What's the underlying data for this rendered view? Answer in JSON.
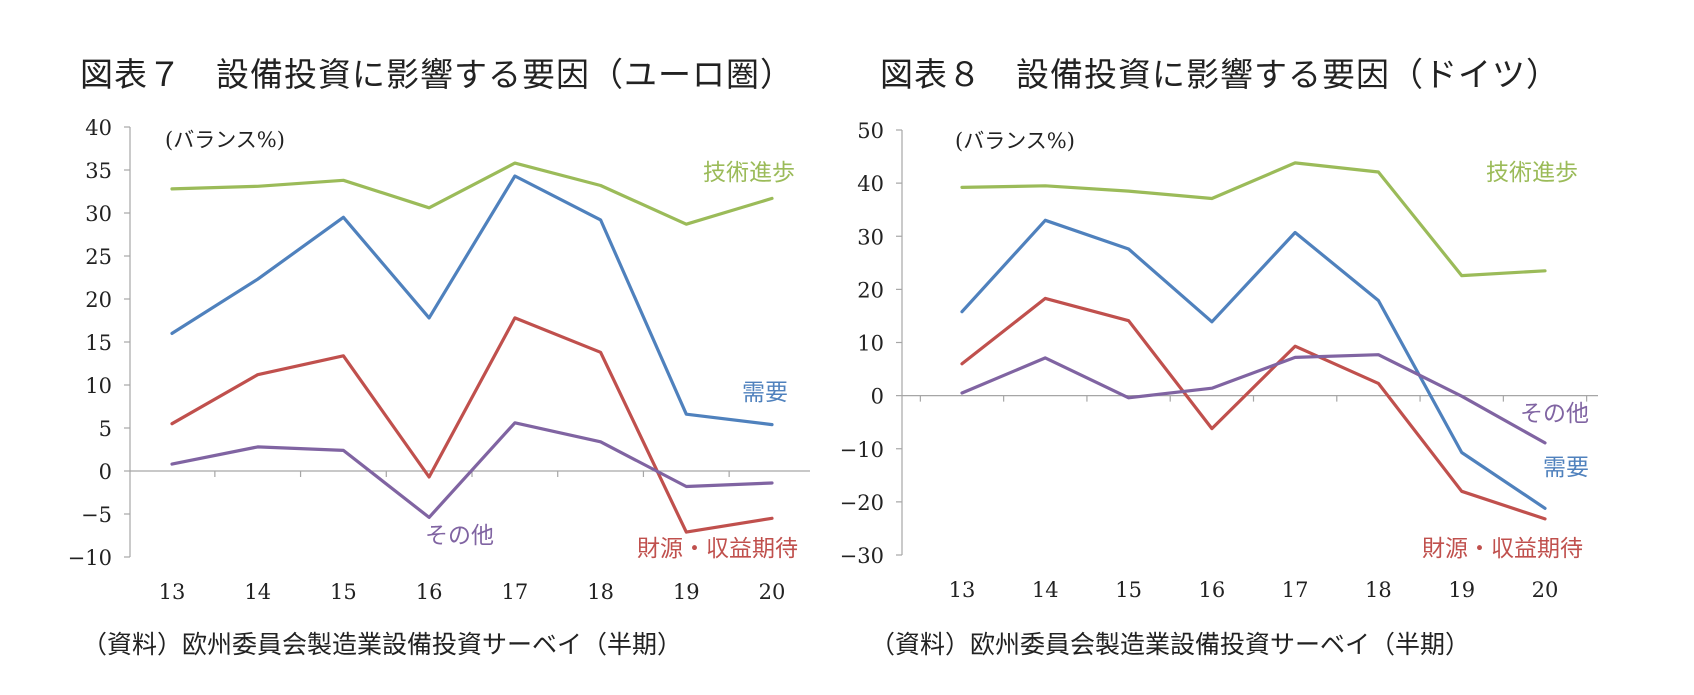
{
  "chart_data": [
    {
      "type": "line",
      "title": "図表７　設備投資に影響する要因（ユーロ圏）",
      "unit_label": "(バランス%)",
      "categories": [
        "13",
        "14",
        "15",
        "16",
        "17",
        "18",
        "19",
        "20"
      ],
      "ylim": [
        -10,
        40
      ],
      "yticks": [
        "40",
        "35",
        "30",
        "25",
        "20",
        "15",
        "10",
        "5",
        "0",
        "−5",
        "−10"
      ],
      "series": [
        {
          "name": "技術進歩",
          "color": "#9bbb59",
          "values": [
            32.8,
            33.1,
            33.8,
            30.6,
            35.8,
            33.2,
            28.7,
            31.7
          ]
        },
        {
          "name": "需要",
          "color": "#4f81bd",
          "values": [
            16.0,
            22.3,
            29.5,
            17.8,
            34.3,
            29.2,
            6.6,
            5.4
          ]
        },
        {
          "name": "財源・収益期待",
          "color": "#c0504d",
          "values": [
            5.5,
            11.2,
            13.4,
            -0.7,
            17.8,
            13.8,
            -7.1,
            -5.5
          ]
        },
        {
          "name": "その他",
          "color": "#8064a2",
          "values": [
            0.8,
            2.8,
            2.4,
            -5.4,
            5.6,
            3.4,
            -1.8,
            -1.4
          ]
        }
      ],
      "source": "（資料）欧州委員会製造業設備投資サーベイ（半期）"
    },
    {
      "type": "line",
      "title": "図表８　設備投資に影響する要因（ドイツ）",
      "unit_label": "(バランス%)",
      "categories": [
        "13",
        "14",
        "15",
        "16",
        "17",
        "18",
        "19",
        "20"
      ],
      "ylim": [
        -30,
        50
      ],
      "yticks": [
        "50",
        "40",
        "30",
        "20",
        "10",
        "0",
        "−10",
        "−20",
        "−30"
      ],
      "series": [
        {
          "name": "技術進歩",
          "color": "#9bbb59",
          "values": [
            39.2,
            39.5,
            38.5,
            37.1,
            43.8,
            42.1,
            22.6,
            23.5
          ]
        },
        {
          "name": "需要",
          "color": "#4f81bd",
          "values": [
            15.8,
            33.0,
            27.6,
            13.9,
            30.7,
            17.9,
            -10.7,
            -21.2
          ]
        },
        {
          "name": "財源・収益期待",
          "color": "#c0504d",
          "values": [
            6.0,
            18.3,
            14.1,
            -6.2,
            9.3,
            2.3,
            -18.0,
            -23.2
          ]
        },
        {
          "name": "その他",
          "color": "#8064a2",
          "values": [
            0.5,
            7.1,
            -0.4,
            1.4,
            7.2,
            7.7,
            -0.1,
            -8.9
          ]
        }
      ],
      "source": "（資料）欧州委員会製造業設備投資サーベイ（半期）"
    }
  ]
}
